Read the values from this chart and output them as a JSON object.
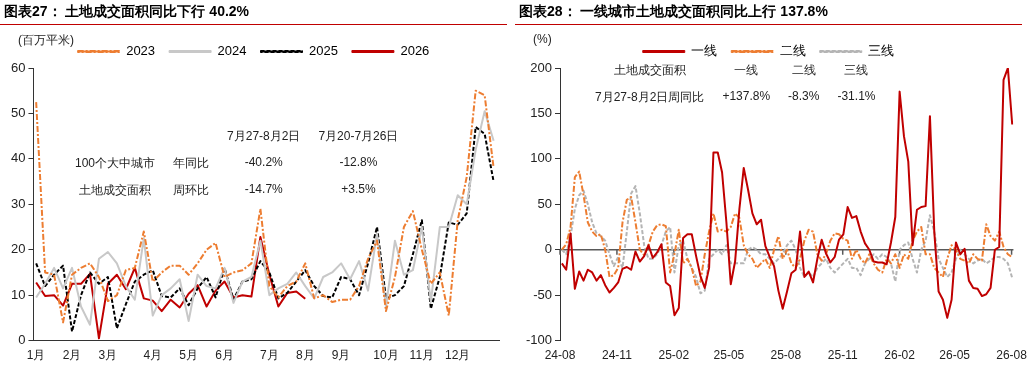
{
  "chart_data": [
    {
      "type": "line",
      "title": "图表27： 土地成交面积同比下行 40.2%",
      "ylabel": "(百万平米)",
      "categories": [
        "1月",
        null,
        null,
        null,
        "2月",
        null,
        null,
        null,
        "3月",
        null,
        null,
        null,
        null,
        "4月",
        null,
        null,
        null,
        "5月",
        null,
        null,
        null,
        "6月",
        null,
        null,
        null,
        null,
        "7月",
        null,
        null,
        null,
        "8月",
        null,
        null,
        null,
        "9月",
        null,
        null,
        null,
        null,
        "10月",
        null,
        null,
        null,
        "11月",
        null,
        null,
        null,
        "12月",
        null,
        null,
        null,
        null
      ],
      "ylim": [
        0,
        60
      ],
      "yticks": [
        0,
        10,
        20,
        30,
        40,
        50,
        60
      ],
      "legend": "top",
      "series": [
        {
          "name": "2023",
          "color": "#ed7d31",
          "line_style": "dashdot",
          "values": [
            52.5,
            15,
            14.5,
            4,
            14.5,
            16,
            17,
            14,
            8.7,
            10,
            15.5,
            16,
            24,
            13,
            15,
            16.5,
            16.5,
            14.5,
            17,
            20,
            21.5,
            14,
            15,
            15.5,
            17,
            29,
            12,
            9.5,
            12,
            13,
            17,
            9.3,
            10,
            8.5,
            9,
            9,
            12,
            18,
            22,
            6.5,
            14,
            25,
            28.5,
            20,
            12.5,
            15,
            5.5,
            26.5,
            36,
            55,
            54,
            38
          ]
        },
        {
          "name": "2024",
          "color": "#c8c8c8",
          "line_style": "solid",
          "values": [
            9.5,
            12.5,
            16,
            11.5,
            16,
            7.5,
            3.5,
            18,
            19.5,
            17,
            12,
            9,
            22.5,
            5.5,
            10,
            11.5,
            13.5,
            4.3,
            14.5,
            12,
            11.5,
            16,
            8.3,
            13,
            14,
            22,
            10,
            11.5,
            12.5,
            15,
            12,
            9.3,
            14,
            15,
            17,
            13.5,
            17.5,
            11,
            23.5,
            7.5,
            22,
            14.5,
            15.5,
            25,
            8.5,
            25,
            25,
            32,
            30,
            42,
            50.5,
            44
          ]
        },
        {
          "name": "2025",
          "color": "#000000",
          "line_style": "dashed",
          "values": [
            17,
            12,
            14.5,
            16.5,
            2,
            10,
            15,
            12.5,
            14,
            2.7,
            8,
            13,
            14.5,
            15.5,
            9.8,
            9.5,
            11.5,
            7.8,
            11.5,
            14,
            9.5,
            16,
            9,
            13,
            13.5,
            17.5,
            15,
            9.3,
            10.5,
            13,
            15.5,
            12,
            9.8,
            9.5,
            14,
            13.5,
            10,
            17,
            25,
            9.3,
            10,
            12,
            19,
            26.5,
            7,
            14,
            26,
            25.5,
            28,
            47,
            45.5,
            35
          ]
        },
        {
          "name": "2026",
          "color": "#c00000",
          "line_style": "solid",
          "values": [
            12.8,
            9.8,
            10,
            7.7,
            12.5,
            12.5,
            14.7,
            0.5,
            12.5,
            14.5,
            11.3,
            16,
            9.3,
            8.8,
            6.5,
            9,
            7.3,
            10.3,
            12.2,
            7.5,
            11,
            13,
            9.5,
            10,
            9.7,
            22.8,
            14.5,
            7.5,
            10.5,
            10.8,
            9.2,
            null,
            null,
            null,
            null,
            null,
            null,
            null,
            null,
            null,
            null,
            null,
            null,
            null,
            null,
            null,
            null,
            null,
            null,
            null,
            null,
            null
          ]
        }
      ],
      "annotations": [
        "7月27-8月2日",
        "7月20-7月26日",
        "100个大中城市",
        "年同比",
        "-40.2%",
        "-12.8%",
        "土地成交面积",
        "周环比",
        "-14.7%",
        "+3.5%"
      ]
    },
    {
      "type": "line",
      "title": "图表28： 一线城市土地成交面积同比上行 137.8%",
      "ylabel": "(%)",
      "x": [
        "2024-08-04",
        "2024-08-11",
        "2024-08-18",
        "2024-08-25",
        "2024-09-01",
        "2024-09-08",
        "2024-09-15",
        "2024-09-22",
        "2024-09-29",
        "2024-10-06",
        "2024-10-13",
        "2024-10-20",
        "2024-10-27",
        "2024-11-03",
        "2024-11-10",
        "2024-11-17",
        "2024-11-24",
        "2024-12-01",
        "2024-12-08",
        "2024-12-15",
        "2024-12-22",
        "2024-12-29",
        "2025-01-05",
        "2025-01-12",
        "2025-01-19",
        "2025-01-26",
        "2025-02-02",
        "2025-02-09",
        "2025-02-16",
        "2025-02-23",
        "2025-03-02",
        "2025-03-09",
        "2025-03-16",
        "2025-03-23",
        "2025-03-30",
        "2025-04-06",
        "2025-04-13",
        "2025-04-20",
        "2025-04-27",
        "2025-05-04",
        "2025-05-11",
        "2025-05-18",
        "2025-05-25",
        "2025-06-01",
        "2025-06-08",
        "2025-06-15",
        "2025-06-22",
        "2025-06-29",
        "2025-07-06",
        "2025-07-13",
        "2025-07-20",
        "2025-07-27",
        "2025-08-03",
        "2025-08-10",
        "2025-08-17",
        "2025-08-24",
        "2025-08-31",
        "2025-09-07",
        "2025-09-14",
        "2025-09-21",
        "2025-09-28",
        "2025-10-05",
        "2025-10-12",
        "2025-10-19",
        "2025-10-26",
        "2025-11-02",
        "2025-11-09",
        "2025-11-16",
        "2025-11-23",
        "2025-11-30",
        "2025-12-07",
        "2025-12-14",
        "2025-12-21",
        "2025-12-28",
        "2026-01-04",
        "2026-01-11",
        "2026-01-18",
        "2026-01-25",
        "2026-02-01",
        "2026-02-08",
        "2026-02-15",
        "2026-02-22",
        "2026-03-01",
        "2026-03-08",
        "2026-03-15",
        "2026-03-22",
        "2026-03-29",
        "2026-04-05",
        "2026-04-12",
        "2026-04-19",
        "2026-04-26",
        "2026-05-03",
        "2026-05-10",
        "2026-05-17",
        "2026-05-24",
        "2026-05-31",
        "2026-06-07",
        "2026-06-14",
        "2026-06-21",
        "2026-06-28",
        "2026-07-05",
        "2026-07-12",
        "2026-07-19",
        "2026-07-26",
        "2026-08-02"
      ],
      "xlim": [
        "2024-08-01",
        "2026-08-04"
      ],
      "xticks": [
        {
          "value": "2024-08-01",
          "label": "24-08"
        },
        {
          "value": "2024-11-01",
          "label": "24-11"
        },
        {
          "value": "2025-02-01",
          "label": "25-02"
        },
        {
          "value": "2025-05-01",
          "label": "25-05"
        },
        {
          "value": "2025-08-01",
          "label": "25-08"
        },
        {
          "value": "2025-11-01",
          "label": "25-11"
        },
        {
          "value": "2026-02-01",
          "label": "26-02"
        },
        {
          "value": "2026-05-01",
          "label": "26-05"
        },
        {
          "value": "2026-08-01",
          "label": "26-08"
        }
      ],
      "ylim": [
        -100,
        200
      ],
      "yticks": [
        -100,
        -50,
        0,
        50,
        100,
        150,
        200
      ],
      "legend": "top",
      "ref_lines": [
        {
          "axis": "y",
          "value": 0,
          "color": "#595959"
        }
      ],
      "series": [
        {
          "name": "一线",
          "color": "#c00000",
          "line_style": "solid",
          "values": [
            -15,
            -22,
            18,
            -43,
            -24,
            -34,
            -22,
            -25,
            -34,
            -28,
            -39,
            -47,
            -42,
            -36,
            -21,
            -19,
            -22,
            -2,
            -13,
            -7,
            5,
            -9,
            -3,
            6,
            -36,
            -40,
            -72,
            -64,
            13,
            17,
            17,
            -7,
            -29,
            -42,
            -20,
            107,
            107,
            85,
            30,
            -38,
            -13,
            45,
            90,
            66,
            40,
            28,
            33,
            4,
            -8,
            -18,
            -45,
            -65,
            -46,
            -26,
            -22,
            20,
            -30,
            -24,
            -36,
            -10,
            11,
            -4,
            -14,
            -8,
            11,
            17,
            47,
            35,
            37,
            20,
            7,
            0,
            -13,
            -14,
            -14,
            -16,
            8,
            36,
            174,
            125,
            97,
            5,
            44,
            47,
            48,
            147,
            20,
            -46,
            -55,
            -75,
            -55,
            8,
            -5,
            1,
            -34,
            -42,
            -43,
            -51,
            -49,
            -42,
            0,
            3,
            187,
            200,
            137.8
          ]
        },
        {
          "name": "二线",
          "color": "#ed7d31",
          "line_style": "dashdot",
          "values": [
            0,
            6,
            25,
            80,
            86,
            60,
            30,
            20,
            15,
            17,
            0,
            -30,
            -28,
            -20,
            30,
            55,
            58,
            30,
            0,
            -6,
            5,
            20,
            27,
            28,
            26,
            -25,
            -5,
            22,
            -15,
            -10,
            -20,
            -40,
            -35,
            -5,
            20,
            40,
            20,
            22,
            20,
            25,
            40,
            35,
            5,
            -5,
            -10,
            -20,
            -15,
            -10,
            -20,
            0,
            15,
            -10,
            0,
            -15,
            -20,
            -10,
            10,
            22,
            20,
            -5,
            -12,
            -5,
            10,
            18,
            17,
            12,
            10,
            -10,
            0,
            -10,
            -15,
            -5,
            -15,
            -22,
            -25,
            -10,
            -15,
            -5,
            -20,
            -5,
            -10,
            10,
            20,
            25,
            -5,
            -5,
            -20,
            -25,
            -30,
            -10,
            5,
            0,
            -10,
            -12,
            -15,
            -5,
            -10,
            -12,
            28,
            15,
            10,
            20,
            3,
            -5,
            -8.3
          ]
        },
        {
          "name": "三线",
          "color": "#b4b4b4",
          "line_style": "dashed",
          "values": [
            0,
            -5,
            15,
            45,
            60,
            65,
            50,
            30,
            18,
            15,
            10,
            -5,
            -18,
            -8,
            -20,
            20,
            62,
            70,
            40,
            5,
            -10,
            -10,
            -5,
            5,
            20,
            25,
            -25,
            5,
            10,
            -10,
            -20,
            -30,
            -48,
            -45,
            -10,
            -5,
            0,
            -5,
            5,
            -15,
            -15,
            -15,
            -15,
            0,
            3,
            0,
            -5,
            -5,
            -10,
            -15,
            -10,
            -5,
            5,
            10,
            0,
            -20,
            -30,
            -25,
            -30,
            -20,
            -15,
            -10,
            -20,
            -25,
            -20,
            -15,
            -10,
            -20,
            -20,
            -28,
            -15,
            -10,
            -5,
            -10,
            -5,
            -8,
            -15,
            -35,
            0,
            5,
            8,
            -10,
            -25,
            0,
            10,
            38,
            20,
            -10,
            -20,
            -30,
            -25,
            -10,
            0,
            -5,
            -10,
            -15,
            -12,
            -10,
            -15,
            -12,
            -8,
            -8,
            -10,
            -15,
            -31.1
          ]
        }
      ],
      "annotations": [
        "土地成交面积",
        "一线",
        "二线",
        "三线",
        "7月27-8月2日周同比",
        "+137.8%",
        "-8.3%",
        "-31.1%"
      ]
    }
  ]
}
